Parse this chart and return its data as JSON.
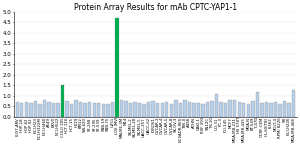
{
  "title": "Protein Array Results for mAb CPTC-YAP1-1",
  "ylim": [
    0,
    5.0
  ],
  "yticks": [
    0.0,
    0.5,
    1.0,
    1.5,
    2.0,
    2.5,
    3.0,
    3.5,
    4.0,
    4.5,
    5.0
  ],
  "bars": [
    {
      "label": "LU37-ARV",
      "value": 0.72,
      "color": "#b8cfe8"
    },
    {
      "label": "HOP-18",
      "value": 0.68,
      "color": "#b8cfe8"
    },
    {
      "label": "HOP-62",
      "value": 0.7,
      "color": "#b8cfe8"
    },
    {
      "label": "HOP-92",
      "value": 0.65,
      "color": "#b8cfe8"
    },
    {
      "label": "NCI-H23",
      "value": 0.75,
      "color": "#b8cfe8"
    },
    {
      "label": "NCI-H322M",
      "value": 0.62,
      "color": "#b8cfe8"
    },
    {
      "label": "NCI-H460",
      "value": 0.78,
      "color": "#b8cfe8"
    },
    {
      "label": "A549",
      "value": 0.7,
      "color": "#b8cfe8"
    },
    {
      "label": "EKVX",
      "value": 0.65,
      "color": "#b8cfe8"
    },
    {
      "label": "NCI-H522",
      "value": 0.68,
      "color": "#b8cfe8"
    },
    {
      "label": "COLO 205",
      "value": 1.52,
      "color": "#00b050"
    },
    {
      "label": "HCT-116",
      "value": 0.75,
      "color": "#b8cfe8"
    },
    {
      "label": "HCT-15",
      "value": 0.6,
      "color": "#b8cfe8"
    },
    {
      "label": "HT29",
      "value": 0.8,
      "color": "#b8cfe8"
    },
    {
      "label": "KM12",
      "value": 0.7,
      "color": "#b8cfe8"
    },
    {
      "label": "SW-620",
      "value": 0.65,
      "color": "#b8cfe8"
    },
    {
      "label": "SF-268",
      "value": 0.72,
      "color": "#b8cfe8"
    },
    {
      "label": "SF-295",
      "value": 0.68,
      "color": "#b8cfe8"
    },
    {
      "label": "SF-539",
      "value": 0.65,
      "color": "#b8cfe8"
    },
    {
      "label": "SNB-19",
      "value": 0.62,
      "color": "#b8cfe8"
    },
    {
      "label": "SNB-75",
      "value": 0.6,
      "color": "#b8cfe8"
    },
    {
      "label": "U251",
      "value": 0.7,
      "color": "#b8cfe8"
    },
    {
      "label": "LOX IMVI",
      "value": 4.72,
      "color": "#00b050"
    },
    {
      "label": "MALME-3M",
      "value": 0.8,
      "color": "#b8cfe8"
    },
    {
      "label": "M14",
      "value": 0.75,
      "color": "#b8cfe8"
    },
    {
      "label": "SK-MEL-2",
      "value": 0.65,
      "color": "#b8cfe8"
    },
    {
      "label": "SK-MEL-28",
      "value": 0.7,
      "color": "#b8cfe8"
    },
    {
      "label": "SK-MEL-5",
      "value": 0.68,
      "color": "#b8cfe8"
    },
    {
      "label": "UACC-257",
      "value": 0.6,
      "color": "#b8cfe8"
    },
    {
      "label": "UACC-62",
      "value": 0.72,
      "color": "#b8cfe8"
    },
    {
      "label": "IGROV1",
      "value": 0.75,
      "color": "#b8cfe8"
    },
    {
      "label": "OVCAR-3",
      "value": 0.68,
      "color": "#b8cfe8"
    },
    {
      "label": "OVCAR-4",
      "value": 0.65,
      "color": "#b8cfe8"
    },
    {
      "label": "OVCAR-5",
      "value": 0.7,
      "color": "#b8cfe8"
    },
    {
      "label": "OVCAR-8",
      "value": 0.62,
      "color": "#b8cfe8"
    },
    {
      "label": "SK-OV-3",
      "value": 0.78,
      "color": "#b8cfe8"
    },
    {
      "label": "NCI/ADR-RES",
      "value": 0.65,
      "color": "#b8cfe8"
    },
    {
      "label": "786-0",
      "value": 0.8,
      "color": "#b8cfe8"
    },
    {
      "label": "A498",
      "value": 0.72,
      "color": "#b8cfe8"
    },
    {
      "label": "ACHN",
      "value": 0.65,
      "color": "#b8cfe8"
    },
    {
      "label": "CAKI-1",
      "value": 0.68,
      "color": "#b8cfe8"
    },
    {
      "label": "RXF 393",
      "value": 0.6,
      "color": "#b8cfe8"
    },
    {
      "label": "SN12C",
      "value": 0.7,
      "color": "#b8cfe8"
    },
    {
      "label": "TK-10",
      "value": 0.75,
      "color": "#b8cfe8"
    },
    {
      "label": "UO-31",
      "value": 1.1,
      "color": "#b8cfe8"
    },
    {
      "label": "PC-3",
      "value": 0.72,
      "color": "#b8cfe8"
    },
    {
      "label": "DU-145",
      "value": 0.65,
      "color": "#b8cfe8"
    },
    {
      "label": "MCF7",
      "value": 0.78,
      "color": "#b8cfe8"
    },
    {
      "label": "MDA-MB-231",
      "value": 0.8,
      "color": "#b8cfe8"
    },
    {
      "label": "HS 578T",
      "value": 0.7,
      "color": "#b8cfe8"
    },
    {
      "label": "MDA-MB-435",
      "value": 0.65,
      "color": "#b8cfe8"
    },
    {
      "label": "MDA-N",
      "value": 0.6,
      "color": "#b8cfe8"
    },
    {
      "label": "BT-549",
      "value": 0.75,
      "color": "#b8cfe8"
    },
    {
      "label": "T-47D",
      "value": 1.18,
      "color": "#b8cfe8"
    },
    {
      "label": "CCRF-CEM",
      "value": 0.68,
      "color": "#b8cfe8"
    },
    {
      "label": "HL-60(TB)",
      "value": 0.72,
      "color": "#b8cfe8"
    },
    {
      "label": "K-562",
      "value": 0.65,
      "color": "#b8cfe8"
    },
    {
      "label": "MOLT-4",
      "value": 0.7,
      "color": "#b8cfe8"
    },
    {
      "label": "RPMI 8226",
      "value": 0.6,
      "color": "#b8cfe8"
    },
    {
      "label": "SR",
      "value": 0.75,
      "color": "#b8cfe8"
    },
    {
      "label": "NCI-H226",
      "value": 0.68,
      "color": "#b8cfe8"
    },
    {
      "label": "MDA-MB-468",
      "value": 1.28,
      "color": "#b8cfe8"
    }
  ],
  "background_color": "#ffffff",
  "title_fontsize": 5.5,
  "tick_fontsize": 2.8,
  "ytick_fontsize": 4.0,
  "bar_width": 0.75,
  "grid_color": "#bbbbbb",
  "grid_style": "dotted"
}
